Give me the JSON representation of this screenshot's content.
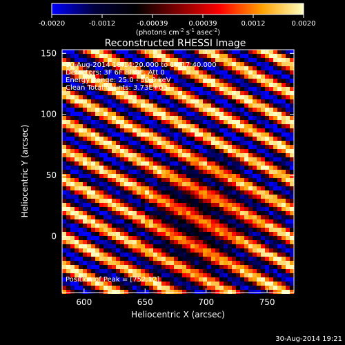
{
  "chart_data": {
    "type": "heatmap",
    "title": "Reconstructed RHESSI Image",
    "xlabel": "Heliocentric X (arcsec)",
    "ylabel": "Heliocentric Y (arcsec)",
    "xlim": [
      582,
      772
    ],
    "ylim": [
      -46,
      153
    ],
    "x_ticks": [
      600,
      650,
      700,
      750
    ],
    "y_ticks": [
      0,
      50,
      100,
      150
    ],
    "colorbar": {
      "label_html": "(photons cm<tspan baseline-shift=\"super\" font-size=\"7\">-2</tspan> s<tspan baseline-shift=\"super\" font-size=\"7\">-1</tspan> asec<tspan baseline-shift=\"super\" font-size=\"7\">-2</tspan>)",
      "range": [
        -0.002,
        0.002
      ],
      "ticks": [
        "-0.0020",
        "-0.0012",
        "-0.00039",
        "0.00039",
        "0.0012",
        "0.0020"
      ],
      "colormap": [
        "#0000ff",
        "#000040",
        "#000000",
        "#800000",
        "#ff0000",
        "#ffa000",
        "#ffffc0"
      ]
    },
    "annotations": [
      "30-Aug-2014 18:14:20.000 to 18:17:40.000",
      "Detectors: 3F 6F 8F 9F, Att 0",
      "Energy Range: 25.0 - 50.0 keV",
      "Clean     Total counts: 3.73E+03"
    ],
    "peak_label": "Position of Peak = [752,12]",
    "pattern": {
      "description_values": "striped modulation pattern, diagonal bands",
      "band_period_arcsec": 21,
      "band_direction_deg": 27,
      "amplitude": 0.002
    }
  },
  "footer": {
    "timestamp": "30-Aug-2014 19:21"
  }
}
